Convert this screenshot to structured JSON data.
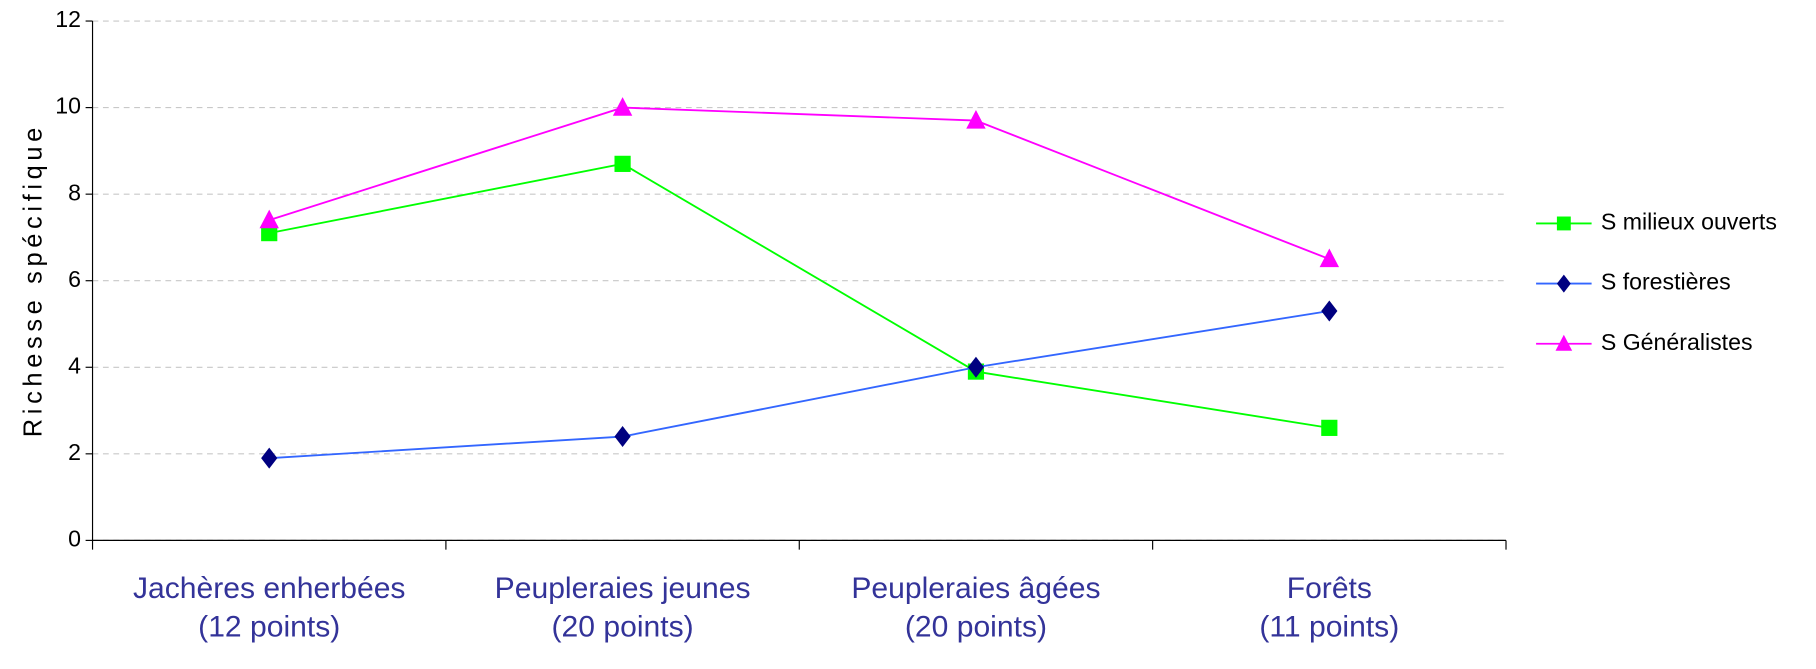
{
  "chart_data": {
    "type": "line",
    "y_label": "Richesse spécifique",
    "categories": [
      "Jachères enherbées\n(12 points)",
      "Peupleraies jeunes\n(20 points)",
      "Peupleraies âgées\n(20 points)",
      "Forêts\n(11 points)"
    ],
    "series": [
      {
        "name": "S milieux ouverts",
        "color": "#00ff00",
        "marker_color": "#00ff00",
        "marker": "square",
        "values": [
          7.1,
          8.7,
          3.9,
          2.6
        ]
      },
      {
        "name": "S forestières",
        "color": "#3366ff",
        "marker_color": "#000080",
        "marker": "diamond",
        "values": [
          1.9,
          2.4,
          4.0,
          5.3
        ]
      },
      {
        "name": "S Généralistes",
        "color": "#ff00ff",
        "marker_color": "#ff00ff",
        "marker": "triangle",
        "values": [
          7.4,
          10.0,
          9.7,
          6.5
        ]
      }
    ],
    "ylim": [
      0,
      12
    ],
    "yticks": [
      0,
      2,
      4,
      6,
      8,
      10,
      12
    ],
    "grid": true,
    "legend": "right"
  }
}
